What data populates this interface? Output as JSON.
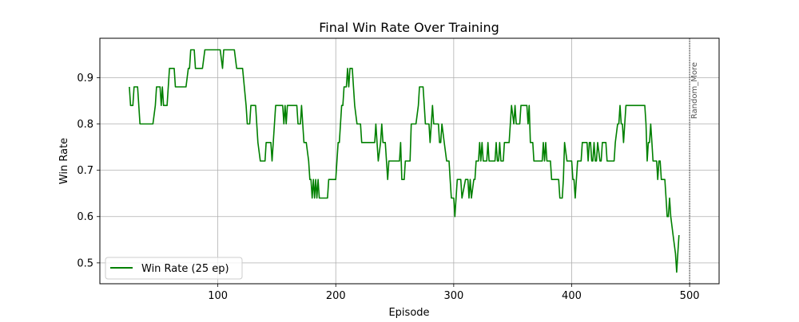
{
  "chart_data": {
    "type": "line",
    "title": "Final Win Rate Over Training",
    "xlabel": "Episode",
    "ylabel": "Win Rate",
    "xlim": [
      0,
      525
    ],
    "ylim": [
      0.455,
      0.985
    ],
    "xticks": [
      100,
      200,
      300,
      400,
      500
    ],
    "yticks": [
      0.5,
      0.6,
      0.7,
      0.8,
      0.9
    ],
    "grid": true,
    "legend_position": "lower-left",
    "series": [
      {
        "name": "Win Rate (25 ep)",
        "color": "#008000",
        "points": [
          [
            25,
            0.88
          ],
          [
            26,
            0.84
          ],
          [
            28,
            0.84
          ],
          [
            29,
            0.88
          ],
          [
            32,
            0.88
          ],
          [
            34,
            0.8
          ],
          [
            45,
            0.8
          ],
          [
            47,
            0.84
          ],
          [
            48,
            0.88
          ],
          [
            51,
            0.88
          ],
          [
            52,
            0.84
          ],
          [
            53,
            0.88
          ],
          [
            54,
            0.84
          ],
          [
            57,
            0.84
          ],
          [
            59,
            0.92
          ],
          [
            63,
            0.92
          ],
          [
            64,
            0.88
          ],
          [
            73,
            0.88
          ],
          [
            75,
            0.92
          ],
          [
            76,
            0.92
          ],
          [
            77,
            0.96
          ],
          [
            80,
            0.96
          ],
          [
            81,
            0.92
          ],
          [
            87,
            0.92
          ],
          [
            89,
            0.96
          ],
          [
            102,
            0.96
          ],
          [
            104,
            0.92
          ],
          [
            105,
            0.96
          ],
          [
            114,
            0.96
          ],
          [
            116,
            0.92
          ],
          [
            121,
            0.92
          ],
          [
            124,
            0.84
          ],
          [
            125,
            0.8
          ],
          [
            127,
            0.8
          ],
          [
            128,
            0.84
          ],
          [
            132,
            0.84
          ],
          [
            134,
            0.76
          ],
          [
            136,
            0.72
          ],
          [
            140,
            0.72
          ],
          [
            141,
            0.76
          ],
          [
            145,
            0.76
          ],
          [
            146,
            0.72
          ],
          [
            148,
            0.8
          ],
          [
            149,
            0.84
          ],
          [
            155,
            0.84
          ],
          [
            156,
            0.8
          ],
          [
            157,
            0.84
          ],
          [
            158,
            0.8
          ],
          [
            159,
            0.84
          ],
          [
            167,
            0.84
          ],
          [
            168,
            0.8
          ],
          [
            170,
            0.8
          ],
          [
            171,
            0.84
          ],
          [
            172,
            0.8
          ],
          [
            173,
            0.76
          ],
          [
            175,
            0.76
          ],
          [
            177,
            0.72
          ],
          [
            178,
            0.68
          ],
          [
            179,
            0.68
          ],
          [
            180,
            0.64
          ],
          [
            181,
            0.68
          ],
          [
            182,
            0.64
          ],
          [
            183,
            0.68
          ],
          [
            184,
            0.64
          ],
          [
            185,
            0.68
          ],
          [
            186,
            0.64
          ],
          [
            193,
            0.64
          ],
          [
            194,
            0.68
          ],
          [
            200,
            0.68
          ],
          [
            202,
            0.76
          ],
          [
            203,
            0.76
          ],
          [
            205,
            0.84
          ],
          [
            206,
            0.84
          ],
          [
            207,
            0.88
          ],
          [
            209,
            0.88
          ],
          [
            210,
            0.92
          ],
          [
            211,
            0.88
          ],
          [
            212,
            0.92
          ],
          [
            214,
            0.92
          ],
          [
            216,
            0.84
          ],
          [
            218,
            0.8
          ],
          [
            221,
            0.8
          ],
          [
            222,
            0.76
          ],
          [
            233,
            0.76
          ],
          [
            234,
            0.8
          ],
          [
            235,
            0.76
          ],
          [
            236,
            0.72
          ],
          [
            238,
            0.76
          ],
          [
            239,
            0.8
          ],
          [
            240,
            0.76
          ],
          [
            242,
            0.76
          ],
          [
            243,
            0.72
          ],
          [
            244,
            0.68
          ],
          [
            245,
            0.72
          ],
          [
            254,
            0.72
          ],
          [
            255,
            0.76
          ],
          [
            256,
            0.68
          ],
          [
            258,
            0.68
          ],
          [
            259,
            0.72
          ],
          [
            263,
            0.72
          ],
          [
            264,
            0.8
          ],
          [
            268,
            0.8
          ],
          [
            270,
            0.84
          ],
          [
            271,
            0.88
          ],
          [
            274,
            0.88
          ],
          [
            275,
            0.84
          ],
          [
            276,
            0.8
          ],
          [
            279,
            0.8
          ],
          [
            280,
            0.76
          ],
          [
            281,
            0.8
          ],
          [
            282,
            0.84
          ],
          [
            283,
            0.8
          ],
          [
            287,
            0.8
          ],
          [
            288,
            0.76
          ],
          [
            289,
            0.76
          ],
          [
            290,
            0.8
          ],
          [
            292,
            0.76
          ],
          [
            294,
            0.72
          ],
          [
            296,
            0.72
          ],
          [
            297,
            0.68
          ],
          [
            298,
            0.64
          ],
          [
            300,
            0.64
          ],
          [
            301,
            0.6
          ],
          [
            302,
            0.64
          ],
          [
            303,
            0.68
          ],
          [
            306,
            0.68
          ],
          [
            307,
            0.64
          ],
          [
            310,
            0.68
          ],
          [
            312,
            0.68
          ],
          [
            313,
            0.64
          ],
          [
            314,
            0.68
          ],
          [
            315,
            0.64
          ],
          [
            317,
            0.68
          ],
          [
            318,
            0.68
          ],
          [
            319,
            0.72
          ],
          [
            321,
            0.72
          ],
          [
            322,
            0.76
          ],
          [
            323,
            0.72
          ],
          [
            324,
            0.76
          ],
          [
            325,
            0.72
          ],
          [
            328,
            0.72
          ],
          [
            329,
            0.76
          ],
          [
            330,
            0.72
          ],
          [
            335,
            0.72
          ],
          [
            336,
            0.76
          ],
          [
            337,
            0.72
          ],
          [
            338,
            0.72
          ],
          [
            339,
            0.76
          ],
          [
            340,
            0.72
          ],
          [
            342,
            0.72
          ],
          [
            343,
            0.76
          ],
          [
            347,
            0.76
          ],
          [
            348,
            0.8
          ],
          [
            349,
            0.84
          ],
          [
            351,
            0.8
          ],
          [
            352,
            0.84
          ],
          [
            353,
            0.8
          ],
          [
            356,
            0.8
          ],
          [
            357,
            0.84
          ],
          [
            362,
            0.84
          ],
          [
            363,
            0.8
          ],
          [
            364,
            0.84
          ],
          [
            365,
            0.76
          ],
          [
            367,
            0.76
          ],
          [
            368,
            0.72
          ],
          [
            375,
            0.72
          ],
          [
            376,
            0.76
          ],
          [
            377,
            0.72
          ],
          [
            378,
            0.76
          ],
          [
            379,
            0.72
          ],
          [
            382,
            0.72
          ],
          [
            383,
            0.68
          ],
          [
            389,
            0.68
          ],
          [
            390,
            0.64
          ],
          [
            392,
            0.64
          ],
          [
            393,
            0.68
          ],
          [
            394,
            0.76
          ],
          [
            396,
            0.72
          ],
          [
            400,
            0.72
          ],
          [
            401,
            0.68
          ],
          [
            402,
            0.68
          ],
          [
            403,
            0.64
          ],
          [
            404,
            0.68
          ],
          [
            405,
            0.72
          ],
          [
            408,
            0.72
          ],
          [
            409,
            0.76
          ],
          [
            413,
            0.76
          ],
          [
            414,
            0.72
          ],
          [
            415,
            0.76
          ],
          [
            416,
            0.76
          ],
          [
            417,
            0.72
          ],
          [
            418,
            0.72
          ],
          [
            419,
            0.76
          ],
          [
            420,
            0.72
          ],
          [
            421,
            0.72
          ],
          [
            422,
            0.76
          ],
          [
            424,
            0.72
          ],
          [
            425,
            0.72
          ],
          [
            426,
            0.76
          ],
          [
            429,
            0.76
          ],
          [
            430,
            0.72
          ],
          [
            436,
            0.72
          ],
          [
            437,
            0.76
          ],
          [
            439,
            0.8
          ],
          [
            440,
            0.8
          ],
          [
            441,
            0.84
          ],
          [
            442,
            0.8
          ],
          [
            443,
            0.8
          ],
          [
            444,
            0.76
          ],
          [
            446,
            0.84
          ],
          [
            462,
            0.84
          ],
          [
            463,
            0.8
          ],
          [
            464,
            0.72
          ],
          [
            465,
            0.76
          ],
          [
            466,
            0.76
          ],
          [
            467,
            0.8
          ],
          [
            468,
            0.76
          ],
          [
            469,
            0.72
          ],
          [
            472,
            0.72
          ],
          [
            473,
            0.68
          ],
          [
            474,
            0.72
          ],
          [
            475,
            0.72
          ],
          [
            476,
            0.68
          ],
          [
            479,
            0.68
          ],
          [
            480,
            0.64
          ],
          [
            481,
            0.6
          ],
          [
            482,
            0.6
          ],
          [
            483,
            0.64
          ],
          [
            484,
            0.6
          ],
          [
            486,
            0.56
          ],
          [
            488,
            0.52
          ],
          [
            489,
            0.48
          ],
          [
            490,
            0.52
          ],
          [
            491,
            0.56
          ]
        ]
      }
    ],
    "annotations": [
      {
        "type": "vline",
        "x": 500,
        "text": "Random_More",
        "color": "#555555"
      }
    ]
  }
}
